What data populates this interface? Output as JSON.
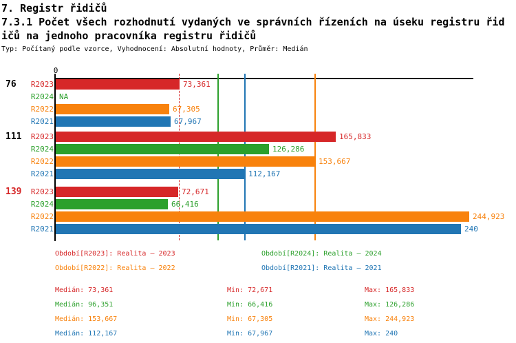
{
  "header": {
    "title": "7. Registr řidičů",
    "subtitle_line1": "7.3.1 Počet všech rozhodnutí vydaných ve správních řízeních na úseku registru řid",
    "subtitle_line2": "ičů na jednoho pracovníka registru řidičů",
    "meta": "Typ: Počítaný podle vzorce, Vyhodnocení: Absolutní hodnoty, Průměr: Medián"
  },
  "chart_data": {
    "type": "bar",
    "orientation": "horizontal",
    "value_axis": {
      "origin_label": "0",
      "min": 0,
      "max_estimate": 247,
      "grid": false
    },
    "highlight_color": "#d62728",
    "series": [
      {
        "id": "R2023",
        "color": "#d62728",
        "median_value": 73.361,
        "median_line_style": "dashed",
        "legend_label": "Období[R2023]: Realita – 2023",
        "stats": {
          "median_text": "Medián: 73,361",
          "min_text": "Min: 72,671",
          "max_text": "Max: 165,833"
        }
      },
      {
        "id": "R2024",
        "color": "#2ca02c",
        "median_value": 96.351,
        "median_line_style": "solid",
        "legend_label": "Období[R2024]: Realita – 2024",
        "stats": {
          "median_text": "Medián: 96,351",
          "min_text": "Min: 66,416",
          "max_text": "Max: 126,286"
        }
      },
      {
        "id": "R2022",
        "color": "#f8820d",
        "median_value": 153.667,
        "median_line_style": "solid",
        "legend_label": "Období[R2022]: Realita – 2022",
        "stats": {
          "median_text": "Medián: 153,667",
          "min_text": "Min: 67,305",
          "max_text": "Max: 244,923"
        }
      },
      {
        "id": "R2021",
        "color": "#2176b4",
        "median_value": 112.167,
        "median_line_style": "solid",
        "legend_label": "Období[R2021]: Realita – 2021",
        "stats": {
          "median_text": "Medián: 112,167",
          "min_text": "Min: 67,967",
          "max_text": "Max: 240"
        }
      }
    ],
    "groups": [
      {
        "id": "76",
        "highlight": false,
        "bars": [
          {
            "series": "R2023",
            "value": 73.361,
            "value_label": "73,361"
          },
          {
            "series": "R2024",
            "value": null,
            "value_label": "NA"
          },
          {
            "series": "R2022",
            "value": 67.305,
            "value_label": "67,305"
          },
          {
            "series": "R2021",
            "value": 67.967,
            "value_label": "67,967"
          }
        ]
      },
      {
        "id": "111",
        "highlight": false,
        "bars": [
          {
            "series": "R2023",
            "value": 165.833,
            "value_label": "165,833"
          },
          {
            "series": "R2024",
            "value": 126.286,
            "value_label": "126,286"
          },
          {
            "series": "R2022",
            "value": 153.667,
            "value_label": "153,667"
          },
          {
            "series": "R2021",
            "value": 112.167,
            "value_label": "112,167"
          }
        ]
      },
      {
        "id": "139",
        "highlight": true,
        "bars": [
          {
            "series": "R2023",
            "value": 72.671,
            "value_label": "72,671"
          },
          {
            "series": "R2024",
            "value": 66.416,
            "value_label": "66,416"
          },
          {
            "series": "R2022",
            "value": 244.923,
            "value_label": "244,923"
          },
          {
            "series": "R2021",
            "value": 240,
            "value_label": "240"
          }
        ]
      }
    ]
  }
}
